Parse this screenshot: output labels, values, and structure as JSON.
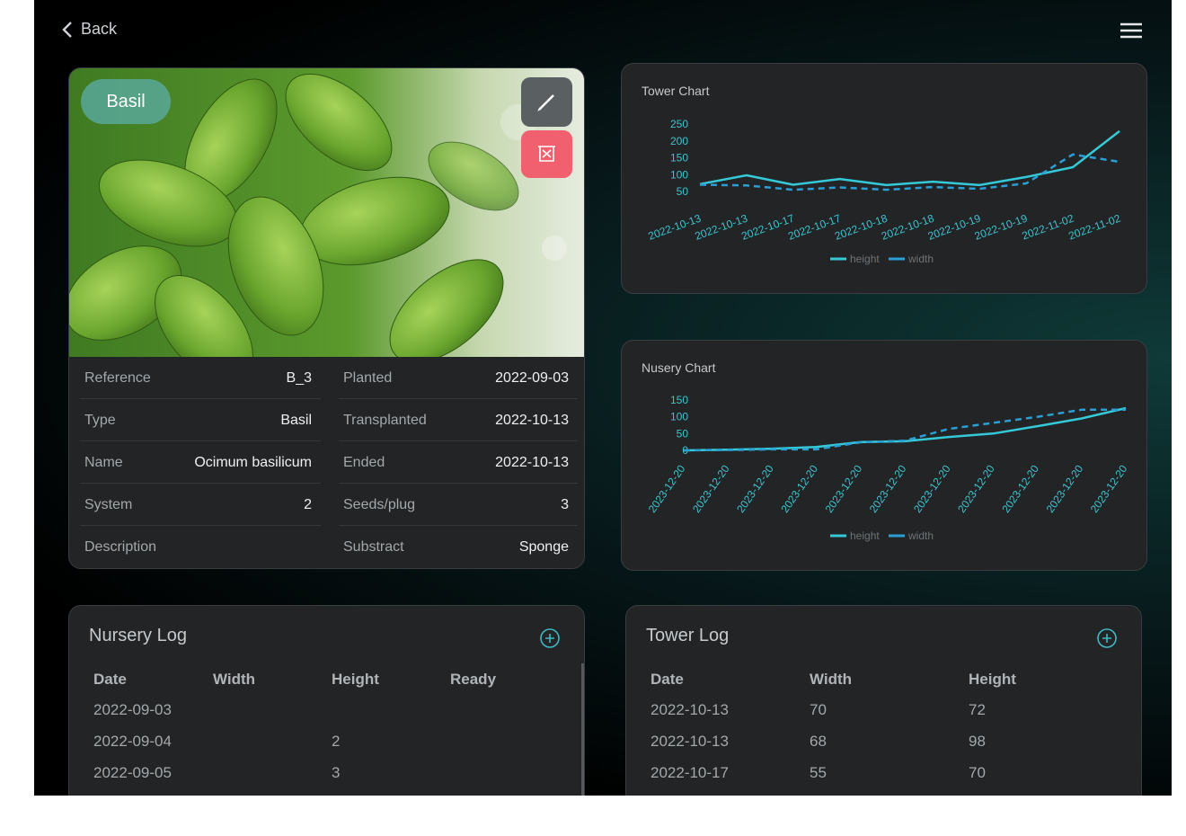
{
  "header": {
    "back": "Back"
  },
  "plant": {
    "tag": "Basil"
  },
  "details": [
    [
      {
        "label": "Reference",
        "value": "B_3"
      },
      {
        "label": "Planted",
        "value": "2022-09-03"
      }
    ],
    [
      {
        "label": "Type",
        "value": "Basil"
      },
      {
        "label": "Transplanted",
        "value": "2022-10-13"
      }
    ],
    [
      {
        "label": "Name",
        "value": "Ocimum basilicum"
      },
      {
        "label": "Ended",
        "value": "2022-10-13"
      }
    ],
    [
      {
        "label": "System",
        "value": 2
      },
      {
        "label": "Seeds/plug",
        "value": 3
      }
    ],
    [
      {
        "label": "Description",
        "value": null
      },
      {
        "label": "Substract",
        "value": "Sponge"
      }
    ]
  ],
  "chart_data": [
    {
      "type": "line",
      "title": "Tower Chart",
      "categories": [
        "2022-10-13",
        "2022-10-13",
        "2022-10-17",
        "2022-10-17",
        "2022-10-18",
        "2022-10-18",
        "2022-10-19",
        "2022-10-19",
        "2022-11-02",
        "2022-11-02"
      ],
      "series": [
        {
          "name": "height",
          "color": "#35c9d8",
          "dashed": false,
          "values": [
            72,
            98,
            70,
            87,
            69,
            79,
            69,
            93,
            122,
            229
          ]
        },
        {
          "name": "width",
          "color": "#2a9fd6",
          "dashed": true,
          "values": [
            70,
            68,
            55,
            62,
            55,
            63,
            58,
            74,
            160,
            138
          ]
        }
      ],
      "ylim": [
        50,
        250
      ],
      "yticks": [
        50,
        100,
        150,
        200,
        250
      ],
      "legend": "bottom"
    },
    {
      "type": "line",
      "title": "Nusery Chart",
      "categories": [
        "2023-12-20",
        "2023-12-20",
        "2023-12-20",
        "2023-12-20",
        "2023-12-20",
        "2023-12-20",
        "2023-12-20",
        "2023-12-20",
        "2023-12-20",
        "2023-12-20",
        "2023-12-20"
      ],
      "series": [
        {
          "name": "height",
          "color": "#35c9d8",
          "dashed": false,
          "values": [
            0,
            2,
            5,
            10,
            25,
            27,
            40,
            50,
            72,
            95,
            126
          ]
        },
        {
          "name": "width",
          "color": "#2a9fd6",
          "dashed": true,
          "values": [
            0,
            1,
            3,
            3,
            24,
            29,
            64,
            82,
            100,
            121,
            121
          ]
        }
      ],
      "ylim": [
        0,
        150
      ],
      "yticks": [
        0,
        50,
        100,
        150
      ],
      "legend": "bottom"
    }
  ],
  "nursery_log": {
    "title": "Nursery Log",
    "columns": [
      "Date",
      "Width",
      "Height",
      "Ready"
    ],
    "rows": [
      [
        "2022-09-03",
        null,
        null,
        null
      ],
      [
        "2022-09-04",
        null,
        2,
        null
      ],
      [
        "2022-09-05",
        null,
        3,
        null
      ]
    ]
  },
  "tower_log": {
    "title": "Tower Log",
    "columns": [
      "Date",
      "Width",
      "Height"
    ],
    "rows": [
      [
        "2022-10-13",
        70,
        72
      ],
      [
        "2022-10-13",
        68,
        98
      ],
      [
        "2022-10-17",
        55,
        70
      ]
    ]
  }
}
